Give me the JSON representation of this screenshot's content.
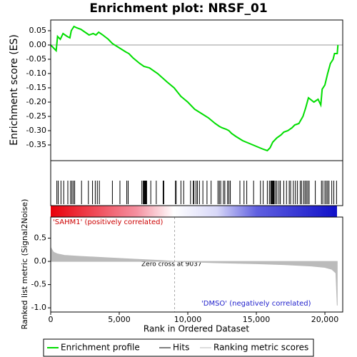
{
  "chart_data": [
    {
      "type": "line",
      "title": "Enrichment plot: NRSF_01",
      "ylabel": "Enrichment score (ES)",
      "series": [
        {
          "name": "Enrichment profile",
          "color": "#00dd00",
          "x": [
            0,
            400,
            500,
            700,
            900,
            1200,
            1400,
            1500,
            1700,
            1900,
            2200,
            2500,
            2800,
            3100,
            3300,
            3500,
            3800,
            4200,
            4500,
            5000,
            5500,
            5700,
            6000,
            6500,
            6800,
            7200,
            7800,
            8500,
            9000,
            9500,
            10000,
            10500,
            11000,
            11500,
            12000,
            12300,
            12500,
            12800,
            13000,
            13200,
            13500,
            14000,
            14500,
            15000,
            15500,
            15800,
            16000,
            16200,
            16500,
            16800,
            17000,
            17300,
            17600,
            17800,
            18100,
            18400,
            18600,
            18800,
            19200,
            19500,
            19700,
            19800,
            20000,
            20200,
            20400,
            20600,
            20700,
            20900,
            20950
          ],
          "values": [
            0,
            -0.02,
            0.03,
            0.02,
            0.04,
            0.03,
            0.025,
            0.05,
            0.065,
            0.06,
            0.055,
            0.045,
            0.035,
            0.04,
            0.035,
            0.045,
            0.035,
            0.02,
            0.005,
            -0.01,
            -0.025,
            -0.03,
            -0.045,
            -0.065,
            -0.075,
            -0.08,
            -0.1,
            -0.13,
            -0.15,
            -0.18,
            -0.2,
            -0.225,
            -0.24,
            -0.255,
            -0.275,
            -0.285,
            -0.29,
            -0.295,
            -0.3,
            -0.31,
            -0.32,
            -0.335,
            -0.345,
            -0.355,
            -0.365,
            -0.37,
            -0.36,
            -0.34,
            -0.325,
            -0.315,
            -0.305,
            -0.3,
            -0.29,
            -0.28,
            -0.275,
            -0.25,
            -0.22,
            -0.185,
            -0.2,
            -0.19,
            -0.21,
            -0.155,
            -0.14,
            -0.1,
            -0.065,
            -0.05,
            -0.03,
            -0.03,
            0.0
          ]
        }
      ],
      "xlim": [
        0,
        21300
      ],
      "ylim": [
        -0.405,
        0.0875
      ],
      "yticks": [
        0.05,
        {
          "value": 0,
          "label": "0.00"
        },
        -0.05,
        {
          "value": -0.1,
          "label": "-0.10"
        },
        -0.15,
        {
          "value": -0.2,
          "label": "-0.20"
        },
        -0.25,
        {
          "value": -0.3,
          "label": "-0.30"
        },
        -0.35
      ]
    },
    {
      "type": "hits",
      "name": "Hits",
      "color": "#000000",
      "xlim": [
        0,
        21300
      ],
      "x": [
        450,
        550,
        750,
        950,
        1250,
        1450,
        1550,
        1650,
        1750,
        2250,
        2750,
        3050,
        3250,
        3400,
        3550,
        4500,
        5050,
        5550,
        5650,
        6650,
        6750,
        6800,
        6850,
        6900,
        6950,
        7000,
        7300,
        7700,
        8200,
        8250,
        9100,
        9150,
        9500,
        9700,
        10200,
        10400,
        10450,
        10600,
        10700,
        10850,
        11100,
        11400,
        11700,
        12200,
        12300,
        12400,
        12600,
        12700,
        12900,
        13000,
        13100,
        13800,
        14100,
        14300,
        14800,
        15300,
        15500,
        15800,
        15950,
        16050,
        16100,
        16150,
        16200,
        16250,
        16300,
        16400,
        16500,
        16650,
        16750,
        17000,
        17200,
        17400,
        17500,
        17700,
        17850,
        18000,
        18200,
        18300,
        18450,
        18550,
        18650,
        18750,
        18850,
        19300,
        19750,
        19850,
        20000,
        20100,
        20200,
        20300,
        20500,
        20650,
        20850
      ]
    },
    {
      "type": "area",
      "name": "Ranking metric scores",
      "color": "#bbbbbb",
      "xlabel": "Rank in Ordered Dataset",
      "ylabel": "Ranked list metric (Signal2Noise)",
      "x": [
        0,
        200,
        500,
        1000,
        2000,
        4000,
        6000,
        8000,
        9037,
        12000,
        15000,
        17000,
        19000,
        20000,
        20500,
        20800,
        20900
      ],
      "values": [
        0.3,
        0.2,
        0.16,
        0.13,
        0.11,
        0.08,
        0.05,
        0.02,
        0,
        -0.03,
        -0.05,
        -0.07,
        -0.1,
        -0.13,
        -0.17,
        -0.25,
        -0.95
      ],
      "xlim": [
        0,
        21300
      ],
      "ylim": [
        -1.09,
        0.954
      ],
      "xticks": [
        0,
        {
          "value": 5000,
          "label": "5,000"
        },
        {
          "value": 10000,
          "label": "10,000"
        },
        {
          "value": 15000,
          "label": "15,000"
        },
        {
          "value": 20000,
          "label": "20,000"
        }
      ],
      "yticks": [
        0.5,
        {
          "value": 0,
          "label": "0.0"
        },
        -0.5,
        {
          "value": -1,
          "label": "-1.0"
        }
      ],
      "annotations": [
        "'SAHM1' (positively correlated)",
        "Zero cross at 9037",
        "'DMSO' (negatively correlated)"
      ]
    }
  ]
}
